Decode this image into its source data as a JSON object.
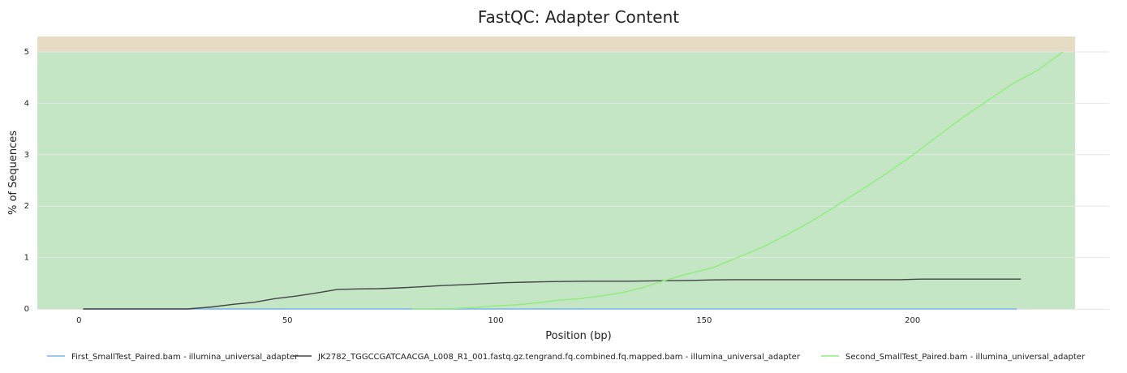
{
  "chart_data": {
    "type": "line",
    "title": "FastQC: Adapter Content",
    "xlabel": "Position (bp)",
    "ylabel": "% of Sequences",
    "xlim": [
      -10,
      239
    ],
    "ylim": [
      0,
      5.3
    ],
    "xticks": [
      0,
      50,
      100,
      150,
      200
    ],
    "yticks": [
      0,
      1,
      2,
      3,
      4,
      5
    ],
    "grid": "horizontal",
    "legend_position": "bottom",
    "background_bands": [
      {
        "from": 0,
        "to": 5,
        "color": "#c4e6c4"
      },
      {
        "from": 5,
        "to": 5.3,
        "color": "#e6dcc4"
      }
    ],
    "series": [
      {
        "name": "First_SmallTest_Paired.bam - illumina_universal_adapter",
        "color": "#7cb5ec",
        "x": [
          1,
          40,
          80,
          120,
          160,
          200,
          225
        ],
        "y": [
          0,
          0,
          0,
          0,
          0,
          0,
          0
        ]
      },
      {
        "name": "JK2782_TGGCCGATCAACGA_L008_R1_001.fastq.gz.tengrand.fq.combined.fq.mapped.bam - illumina_universal_adapter",
        "color": "#434348",
        "x": [
          1,
          26,
          32,
          37,
          42,
          47,
          52,
          57,
          62,
          67,
          72,
          77,
          82,
          87,
          92,
          97,
          102,
          107,
          112,
          117,
          122,
          127,
          132,
          137,
          142,
          147,
          152,
          157,
          162,
          167,
          172,
          177,
          182,
          187,
          192,
          197,
          202,
          207,
          212,
          217,
          222,
          226
        ],
        "y": [
          0,
          0,
          0.04,
          0.09,
          0.13,
          0.2,
          0.25,
          0.31,
          0.38,
          0.39,
          0.395,
          0.41,
          0.43,
          0.455,
          0.47,
          0.49,
          0.51,
          0.52,
          0.53,
          0.535,
          0.54,
          0.54,
          0.54,
          0.545,
          0.55,
          0.555,
          0.565,
          0.57,
          0.57,
          0.57,
          0.57,
          0.57,
          0.57,
          0.57,
          0.57,
          0.57,
          0.58,
          0.58,
          0.58,
          0.58,
          0.58,
          0.58
        ]
      },
      {
        "name": "Second_SmallTest_Paired.bam - illumina_universal_adapter",
        "color": "#90ed7d",
        "x": [
          80,
          90,
          95,
          100,
          105,
          110,
          115,
          120,
          125,
          130,
          135,
          140,
          145,
          152,
          158,
          164,
          170,
          176,
          182,
          188,
          194,
          200,
          206,
          212,
          218,
          224,
          230,
          236
        ],
        "y": [
          0,
          0.01,
          0.03,
          0.06,
          0.08,
          0.12,
          0.17,
          0.2,
          0.25,
          0.31,
          0.41,
          0.54,
          0.66,
          0.8,
          1.0,
          1.2,
          1.45,
          1.72,
          2.02,
          2.33,
          2.65,
          2.99,
          3.36,
          3.72,
          4.05,
          4.38,
          4.64,
          5.0
        ]
      }
    ]
  }
}
